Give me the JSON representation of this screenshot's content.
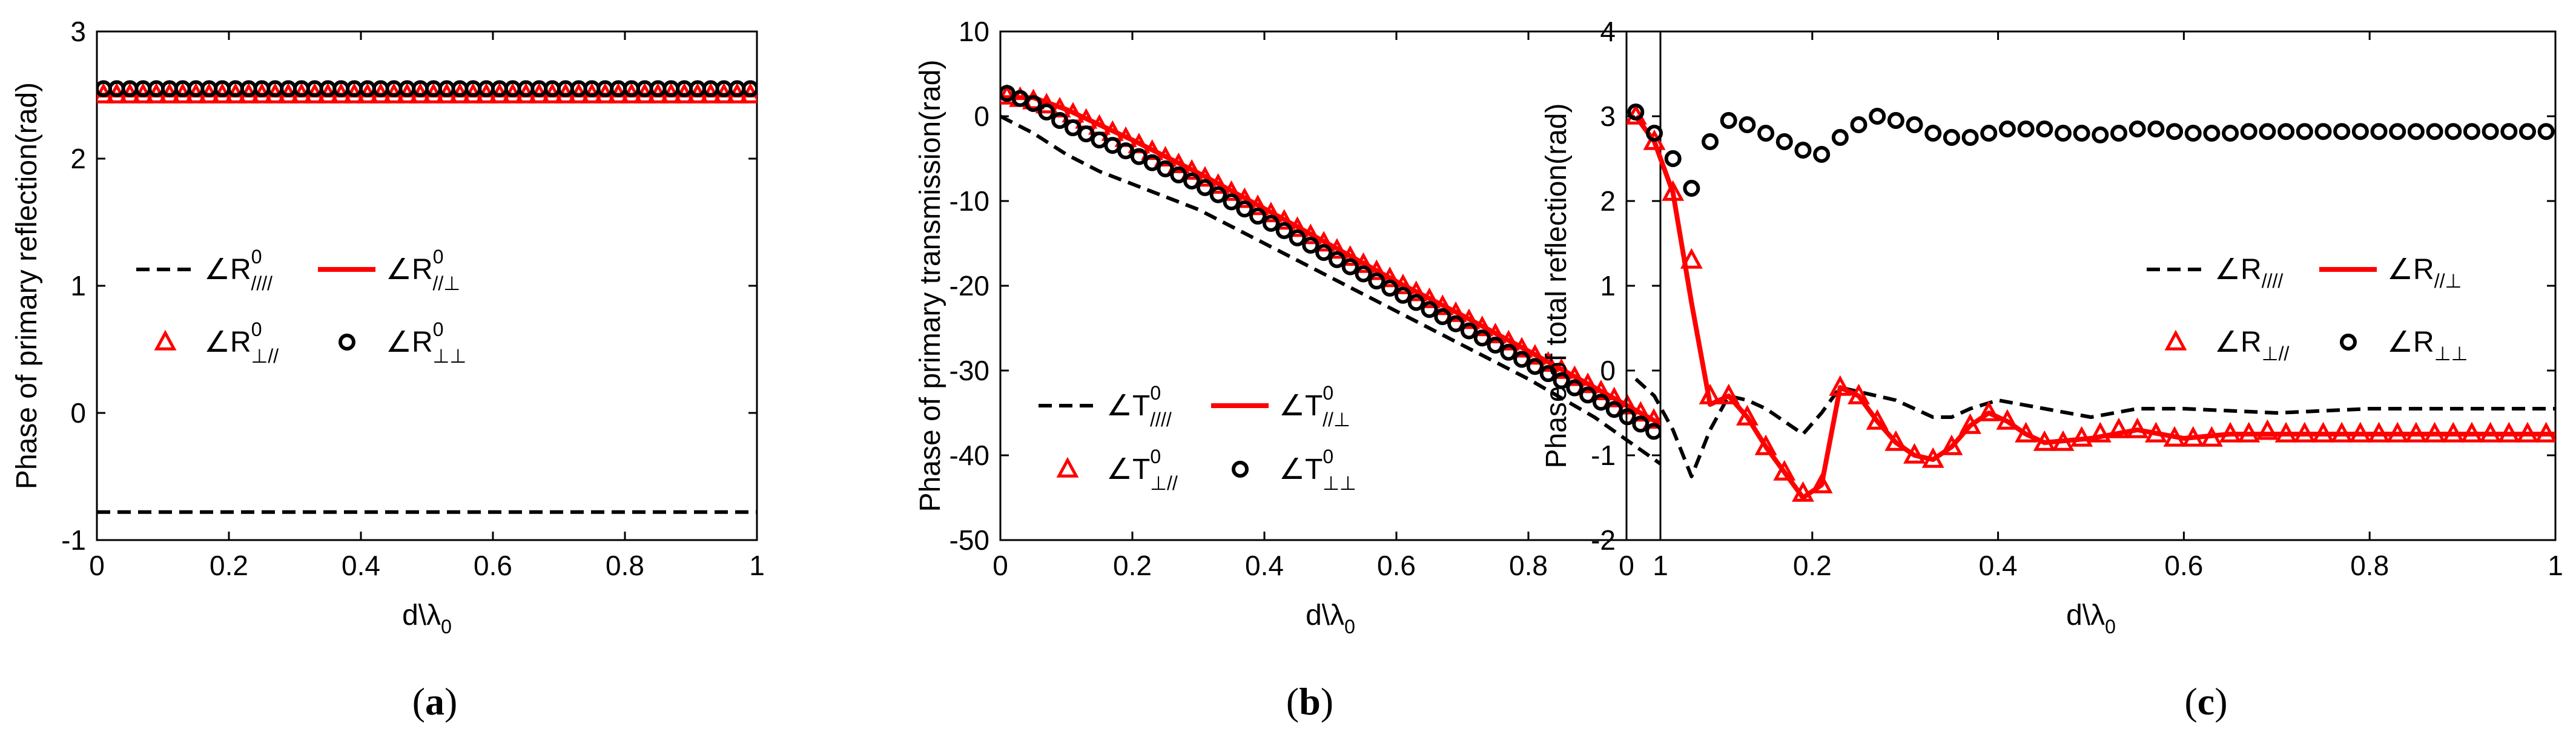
{
  "figure": {
    "captions": [
      {
        "open": "(",
        "letter": "a",
        "close": ")"
      },
      {
        "open": "(",
        "letter": "b",
        "close": ")"
      },
      {
        "open": "(",
        "letter": "c",
        "close": ")"
      }
    ]
  },
  "colors": {
    "black": "#000000",
    "red": "#ff0000"
  },
  "chart_data": [
    {
      "type": "line",
      "title": "",
      "xlabel": {
        "main": "d\\λ",
        "sub": "0"
      },
      "ylabel": "Phase of primary reflection(rad)",
      "xlim": [
        0,
        1
      ],
      "ylim": [
        -1,
        3
      ],
      "xticks": [
        0,
        0.2,
        0.4,
        0.6,
        0.8,
        1
      ],
      "yticks": [
        -1,
        0,
        1,
        2,
        3
      ],
      "legend_position": "middle-left",
      "legend": [
        {
          "angle": "∠",
          "main": "R",
          "sub": "////",
          "sup": "0",
          "style": "black-dashed"
        },
        {
          "angle": "∠",
          "main": "R",
          "sub": "//⊥",
          "sup": "0",
          "style": "red-solid"
        },
        {
          "angle": "∠",
          "main": "R",
          "sub": "⊥//",
          "sup": "0",
          "style": "red-triangle"
        },
        {
          "angle": "∠",
          "main": "R",
          "sub": "⊥⊥",
          "sup": "0",
          "style": "black-circle"
        }
      ],
      "series": [
        {
          "name": "∠R0////",
          "style": "black-dashed",
          "x": [
            0,
            1
          ],
          "y": [
            -0.78,
            -0.78
          ]
        },
        {
          "name": "∠R0//⊥",
          "style": "red-solid",
          "x": [
            0,
            1
          ],
          "y": [
            2.5,
            2.5
          ]
        },
        {
          "name": "∠R0⊥//",
          "style": "red-triangle",
          "points": {
            "x_start": 0.01,
            "x_end": 0.99,
            "count": 50,
            "y": 2.5
          }
        },
        {
          "name": "∠R0⊥⊥",
          "style": "black-circle",
          "points": {
            "x_start": 0.01,
            "x_end": 0.99,
            "count": 50,
            "y": 2.55
          }
        }
      ]
    },
    {
      "type": "line",
      "title": "",
      "xlabel": {
        "main": "d\\λ",
        "sub": "0"
      },
      "ylabel": "Phase of primary transmission(rad)",
      "xlim": [
        0,
        1
      ],
      "ylim": [
        -50,
        10
      ],
      "xticks": [
        0,
        0.2,
        0.4,
        0.6,
        0.8,
        1
      ],
      "yticks": [
        -50,
        -40,
        -30,
        -20,
        -10,
        0,
        10
      ],
      "legend_position": "bottom-left",
      "legend": [
        {
          "angle": "∠",
          "main": "T",
          "sub": "////",
          "sup": "0",
          "style": "black-dashed"
        },
        {
          "angle": "∠",
          "main": "T",
          "sub": "//⊥",
          "sup": "0",
          "style": "red-solid"
        },
        {
          "angle": "∠",
          "main": "T",
          "sub": "⊥//",
          "sup": "0",
          "style": "red-triangle"
        },
        {
          "angle": "∠",
          "main": "T",
          "sub": "⊥⊥",
          "sup": "0",
          "style": "black-circle"
        }
      ],
      "series": [
        {
          "name": "∠T0////",
          "style": "black-dashed",
          "x": [
            0,
            0.05,
            0.1,
            0.15,
            0.2,
            0.3,
            0.4,
            0.5,
            0.6,
            0.7,
            0.8,
            0.9,
            1.0
          ],
          "y": [
            0,
            -2,
            -4.5,
            -6.5,
            -8,
            -11,
            -15,
            -19,
            -23,
            -27,
            -31,
            -35.5,
            -41
          ]
        },
        {
          "name": "∠T0//⊥",
          "style": "red-solid",
          "x": [
            0,
            0.05,
            0.1,
            0.2,
            0.3,
            0.4,
            0.5,
            0.6,
            0.7,
            0.8,
            0.9,
            1.0
          ],
          "y": [
            2.2,
            2.2,
            0.8,
            -2.8,
            -6.7,
            -10.9,
            -15.2,
            -19.5,
            -23.5,
            -27.7,
            -32,
            -36.3
          ]
        },
        {
          "name": "∠T0⊥//",
          "style": "red-triangle",
          "points": {
            "x_start": 0.01,
            "x_end": 0.99,
            "count": 50
          },
          "x": [
            0,
            0.05,
            0.1,
            0.2,
            0.3,
            0.4,
            0.5,
            0.6,
            0.7,
            0.8,
            0.9,
            1.0
          ],
          "y": [
            2.5,
            1.8,
            0.6,
            -3,
            -6.9,
            -11.1,
            -15.4,
            -19.6,
            -23.7,
            -27.9,
            -32.1,
            -36.3
          ]
        },
        {
          "name": "∠T0⊥⊥",
          "style": "black-circle",
          "points": {
            "x_start": 0.01,
            "x_end": 0.99,
            "count": 50
          },
          "x": [
            0,
            0.05,
            0.1,
            0.15,
            0.2,
            0.3,
            0.4,
            0.5,
            0.6,
            0.7,
            0.8,
            0.9,
            1.0
          ],
          "y": [
            3,
            1.5,
            -1,
            -2.8,
            -4.4,
            -8,
            -12.2,
            -16.5,
            -20.7,
            -24.9,
            -29.1,
            -33.3,
            -37.6
          ]
        }
      ]
    },
    {
      "type": "line",
      "title": "",
      "xlabel": {
        "main": "d\\λ",
        "sub": "0"
      },
      "ylabel": "Phase of total reflection(rad)",
      "xlim": [
        0,
        1
      ],
      "ylim": [
        -2,
        4
      ],
      "xticks": [
        0,
        0.2,
        0.4,
        0.6,
        0.8,
        1
      ],
      "yticks": [
        -2,
        -1,
        0,
        1,
        2,
        3,
        4
      ],
      "legend_position": "right",
      "legend": [
        {
          "angle": "∠",
          "main": "R",
          "sub": "////",
          "sup": "",
          "style": "black-dashed"
        },
        {
          "angle": "∠",
          "main": "R",
          "sub": "//⊥",
          "sup": "",
          "style": "red-solid"
        },
        {
          "angle": "∠",
          "main": "R",
          "sub": "⊥//",
          "sup": "",
          "style": "red-triangle"
        },
        {
          "angle": "∠",
          "main": "R",
          "sub": "⊥⊥",
          "sup": "",
          "style": "black-circle"
        }
      ],
      "series": [
        {
          "name": "∠R////",
          "style": "black-dashed",
          "x": [
            0.01,
            0.03,
            0.05,
            0.07,
            0.09,
            0.11,
            0.13,
            0.15,
            0.17,
            0.19,
            0.21,
            0.23,
            0.25,
            0.27,
            0.29,
            0.31,
            0.33,
            0.35,
            0.37,
            0.4,
            0.45,
            0.5,
            0.55,
            0.6,
            0.7,
            0.8,
            0.9,
            1.0
          ],
          "y": [
            -0.1,
            -0.3,
            -0.7,
            -1.25,
            -0.7,
            -0.3,
            -0.35,
            -0.45,
            -0.6,
            -0.75,
            -0.5,
            -0.2,
            -0.25,
            -0.3,
            -0.35,
            -0.45,
            -0.55,
            -0.55,
            -0.45,
            -0.35,
            -0.45,
            -0.55,
            -0.45,
            -0.45,
            -0.5,
            -0.45,
            -0.45,
            -0.45
          ]
        },
        {
          "name": "∠R//⊥",
          "style": "red-solid",
          "x": [
            0.01,
            0.03,
            0.05,
            0.07,
            0.09,
            0.11,
            0.13,
            0.15,
            0.17,
            0.19,
            0.21,
            0.23,
            0.25,
            0.27,
            0.29,
            0.31,
            0.33,
            0.35,
            0.37,
            0.39,
            0.41,
            0.43,
            0.45,
            0.5,
            0.55,
            0.6,
            0.65,
            0.7,
            0.8,
            0.9,
            1.0
          ],
          "y": [
            3.0,
            2.7,
            2.1,
            0.8,
            -0.4,
            -0.3,
            -0.55,
            -0.9,
            -1.2,
            -1.5,
            -1.35,
            -0.2,
            -0.3,
            -0.6,
            -0.85,
            -1.0,
            -1.05,
            -0.9,
            -0.65,
            -0.5,
            -0.6,
            -0.75,
            -0.85,
            -0.8,
            -0.7,
            -0.8,
            -0.75,
            -0.75,
            -0.75,
            -0.75,
            -0.75
          ]
        },
        {
          "name": "∠R⊥//",
          "style": "red-triangle",
          "x": [
            0.01,
            0.03,
            0.05,
            0.07,
            0.09,
            0.11,
            0.13,
            0.15,
            0.17,
            0.19,
            0.21,
            0.23,
            0.25,
            0.27,
            0.29,
            0.31,
            0.33,
            0.35,
            0.37,
            0.39,
            0.41,
            0.43,
            0.45,
            0.47,
            0.49,
            0.51,
            0.53,
            0.55,
            0.57,
            0.59,
            0.61,
            0.63,
            0.65,
            0.67,
            0.69,
            0.71,
            0.73,
            0.75,
            0.77,
            0.79,
            0.81,
            0.83,
            0.85,
            0.87,
            0.89,
            0.91,
            0.93,
            0.95,
            0.97,
            0.99
          ],
          "y": [
            3.0,
            2.7,
            2.1,
            1.3,
            -0.3,
            -0.3,
            -0.55,
            -0.9,
            -1.2,
            -1.45,
            -1.35,
            -0.2,
            -0.3,
            -0.6,
            -0.85,
            -1.0,
            -1.05,
            -0.9,
            -0.65,
            -0.5,
            -0.6,
            -0.75,
            -0.85,
            -0.85,
            -0.8,
            -0.75,
            -0.7,
            -0.7,
            -0.75,
            -0.8,
            -0.8,
            -0.8,
            -0.75,
            -0.75,
            -0.72,
            -0.75,
            -0.75,
            -0.75,
            -0.75,
            -0.75,
            -0.75,
            -0.75,
            -0.75,
            -0.75,
            -0.75,
            -0.75,
            -0.75,
            -0.75,
            -0.75,
            -0.75
          ]
        },
        {
          "name": "∠R⊥⊥",
          "style": "black-circle",
          "x": [
            0.01,
            0.03,
            0.05,
            0.07,
            0.09,
            0.11,
            0.13,
            0.15,
            0.17,
            0.19,
            0.21,
            0.23,
            0.25,
            0.27,
            0.29,
            0.31,
            0.33,
            0.35,
            0.37,
            0.39,
            0.41,
            0.43,
            0.45,
            0.47,
            0.49,
            0.51,
            0.53,
            0.55,
            0.57,
            0.59,
            0.61,
            0.63,
            0.65,
            0.67,
            0.69,
            0.71,
            0.73,
            0.75,
            0.77,
            0.79,
            0.81,
            0.83,
            0.85,
            0.87,
            0.89,
            0.91,
            0.93,
            0.95,
            0.97,
            0.99
          ],
          "y": [
            3.05,
            2.8,
            2.5,
            2.15,
            2.7,
            2.95,
            2.9,
            2.8,
            2.7,
            2.6,
            2.55,
            2.75,
            2.9,
            3.0,
            2.95,
            2.9,
            2.8,
            2.75,
            2.75,
            2.8,
            2.85,
            2.85,
            2.85,
            2.8,
            2.8,
            2.78,
            2.8,
            2.85,
            2.85,
            2.82,
            2.8,
            2.8,
            2.8,
            2.82,
            2.82,
            2.82,
            2.82,
            2.82,
            2.82,
            2.82,
            2.82,
            2.82,
            2.82,
            2.82,
            2.82,
            2.82,
            2.82,
            2.82,
            2.82,
            2.82
          ]
        }
      ]
    }
  ]
}
